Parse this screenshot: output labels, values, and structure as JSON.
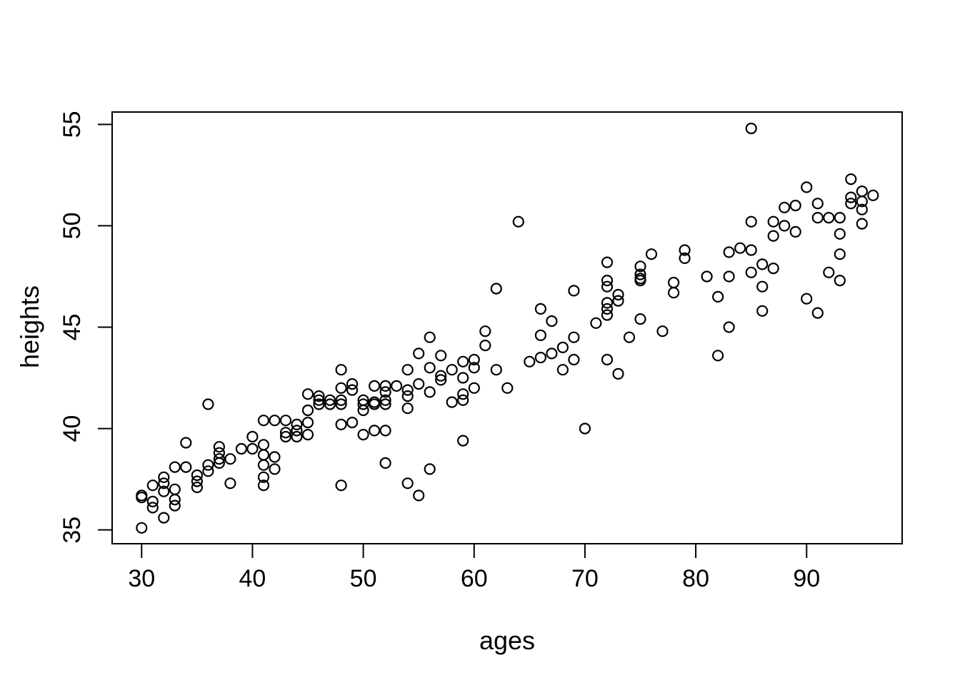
{
  "figure": {
    "background": "#ffffff",
    "foreground": "#000000",
    "marker_color": "#000000"
  },
  "chart_data": {
    "type": "scatter",
    "title": "",
    "xlabel": "ages",
    "ylabel": "heights",
    "marker": "open-circle",
    "grid": false,
    "legend": null,
    "x_ticks": [
      30,
      40,
      50,
      60,
      70,
      80,
      90
    ],
    "y_ticks": [
      35,
      40,
      45,
      50,
      55
    ],
    "xlim": [
      27.34,
      98.62
    ],
    "ylim": [
      34.32,
      55.61
    ],
    "points": [
      [
        30,
        35.1
      ],
      [
        30,
        36.6
      ],
      [
        30,
        36.7
      ],
      [
        31,
        36.4
      ],
      [
        31,
        36.1
      ],
      [
        31,
        37.2
      ],
      [
        32,
        37.6
      ],
      [
        32,
        37.3
      ],
      [
        32,
        36.9
      ],
      [
        32,
        35.6
      ],
      [
        33,
        38.1
      ],
      [
        33,
        37.0
      ],
      [
        33,
        36.5
      ],
      [
        33,
        36.2
      ],
      [
        34,
        39.3
      ],
      [
        34,
        38.1
      ],
      [
        35,
        37.7
      ],
      [
        35,
        37.4
      ],
      [
        35,
        37.1
      ],
      [
        36,
        41.2
      ],
      [
        36,
        38.2
      ],
      [
        36,
        37.9
      ],
      [
        37,
        39.1
      ],
      [
        37,
        38.8
      ],
      [
        37,
        38.5
      ],
      [
        37,
        38.3
      ],
      [
        38,
        38.5
      ],
      [
        38,
        37.3
      ],
      [
        39,
        39.0
      ],
      [
        40,
        39.6
      ],
      [
        40,
        39.0
      ],
      [
        41,
        40.4
      ],
      [
        41,
        39.2
      ],
      [
        41,
        38.7
      ],
      [
        41,
        38.2
      ],
      [
        41,
        37.6
      ],
      [
        41,
        37.2
      ],
      [
        42,
        40.4
      ],
      [
        42,
        38.6
      ],
      [
        42,
        38.0
      ],
      [
        43,
        40.4
      ],
      [
        43,
        39.8
      ],
      [
        43,
        39.6
      ],
      [
        44,
        40.2
      ],
      [
        44,
        39.9
      ],
      [
        44,
        39.6
      ],
      [
        45,
        41.7
      ],
      [
        45,
        40.9
      ],
      [
        45,
        40.3
      ],
      [
        45,
        39.7
      ],
      [
        46,
        41.6
      ],
      [
        46,
        41.4
      ],
      [
        46,
        41.2
      ],
      [
        47,
        41.4
      ],
      [
        47,
        41.2
      ],
      [
        48,
        42.9
      ],
      [
        48,
        42.0
      ],
      [
        48,
        41.4
      ],
      [
        48,
        41.2
      ],
      [
        48,
        40.2
      ],
      [
        48,
        37.2
      ],
      [
        49,
        42.2
      ],
      [
        49,
        41.9
      ],
      [
        49,
        40.3
      ],
      [
        50,
        41.4
      ],
      [
        50,
        41.2
      ],
      [
        50,
        40.9
      ],
      [
        50,
        39.7
      ],
      [
        51,
        42.1
      ],
      [
        51,
        41.3
      ],
      [
        51,
        41.2
      ],
      [
        51,
        39.9
      ],
      [
        52,
        42.1
      ],
      [
        52,
        41.8
      ],
      [
        52,
        41.4
      ],
      [
        52,
        41.2
      ],
      [
        52,
        39.9
      ],
      [
        52,
        38.3
      ],
      [
        53,
        42.1
      ],
      [
        54,
        42.9
      ],
      [
        54,
        41.9
      ],
      [
        54,
        41.6
      ],
      [
        54,
        41.0
      ],
      [
        54,
        37.3
      ],
      [
        55,
        43.7
      ],
      [
        55,
        42.2
      ],
      [
        55,
        36.7
      ],
      [
        56,
        44.5
      ],
      [
        56,
        43.0
      ],
      [
        56,
        41.8
      ],
      [
        56,
        38.0
      ],
      [
        57,
        43.6
      ],
      [
        57,
        42.6
      ],
      [
        57,
        42.4
      ],
      [
        58,
        42.9
      ],
      [
        58,
        41.3
      ],
      [
        59,
        43.3
      ],
      [
        59,
        42.5
      ],
      [
        59,
        41.7
      ],
      [
        59,
        41.4
      ],
      [
        59,
        39.4
      ],
      [
        60,
        43.4
      ],
      [
        60,
        43.0
      ],
      [
        60,
        42.0
      ],
      [
        61,
        44.8
      ],
      [
        61,
        44.1
      ],
      [
        62,
        46.9
      ],
      [
        62,
        42.9
      ],
      [
        63,
        42.0
      ],
      [
        64,
        50.2
      ],
      [
        65,
        43.3
      ],
      [
        66,
        45.9
      ],
      [
        66,
        44.6
      ],
      [
        66,
        43.5
      ],
      [
        67,
        45.3
      ],
      [
        67,
        43.7
      ],
      [
        68,
        44.0
      ],
      [
        68,
        42.9
      ],
      [
        69,
        46.8
      ],
      [
        69,
        44.5
      ],
      [
        69,
        43.4
      ],
      [
        70,
        40.0
      ],
      [
        71,
        45.2
      ],
      [
        72,
        48.2
      ],
      [
        72,
        47.3
      ],
      [
        72,
        47.0
      ],
      [
        72,
        46.2
      ],
      [
        72,
        45.9
      ],
      [
        72,
        45.6
      ],
      [
        72,
        43.4
      ],
      [
        73,
        46.6
      ],
      [
        73,
        46.3
      ],
      [
        73,
        42.7
      ],
      [
        74,
        44.5
      ],
      [
        75,
        48.0
      ],
      [
        75,
        47.6
      ],
      [
        75,
        47.4
      ],
      [
        75,
        47.3
      ],
      [
        75,
        45.4
      ],
      [
        76,
        48.6
      ],
      [
        77,
        44.8
      ],
      [
        78,
        47.2
      ],
      [
        78,
        46.7
      ],
      [
        79,
        48.8
      ],
      [
        79,
        48.4
      ],
      [
        81,
        47.5
      ],
      [
        82,
        46.5
      ],
      [
        82,
        43.6
      ],
      [
        83,
        48.7
      ],
      [
        83,
        47.5
      ],
      [
        83,
        45.0
      ],
      [
        84,
        48.9
      ],
      [
        85,
        54.8
      ],
      [
        85,
        50.2
      ],
      [
        85,
        48.8
      ],
      [
        85,
        47.7
      ],
      [
        86,
        48.1
      ],
      [
        86,
        47.0
      ],
      [
        86,
        45.8
      ],
      [
        87,
        50.2
      ],
      [
        87,
        49.5
      ],
      [
        87,
        47.9
      ],
      [
        88,
        50.9
      ],
      [
        88,
        50.0
      ],
      [
        89,
        51.0
      ],
      [
        89,
        49.7
      ],
      [
        90,
        51.9
      ],
      [
        90,
        46.4
      ],
      [
        91,
        51.1
      ],
      [
        91,
        50.4
      ],
      [
        91,
        45.7
      ],
      [
        92,
        50.4
      ],
      [
        92,
        47.7
      ],
      [
        93,
        50.4
      ],
      [
        93,
        49.6
      ],
      [
        93,
        48.6
      ],
      [
        93,
        47.3
      ],
      [
        94,
        52.3
      ],
      [
        94,
        51.4
      ],
      [
        94,
        51.1
      ],
      [
        95,
        51.7
      ],
      [
        95,
        51.2
      ],
      [
        95,
        50.8
      ],
      [
        95,
        50.1
      ],
      [
        96,
        51.5
      ]
    ]
  }
}
